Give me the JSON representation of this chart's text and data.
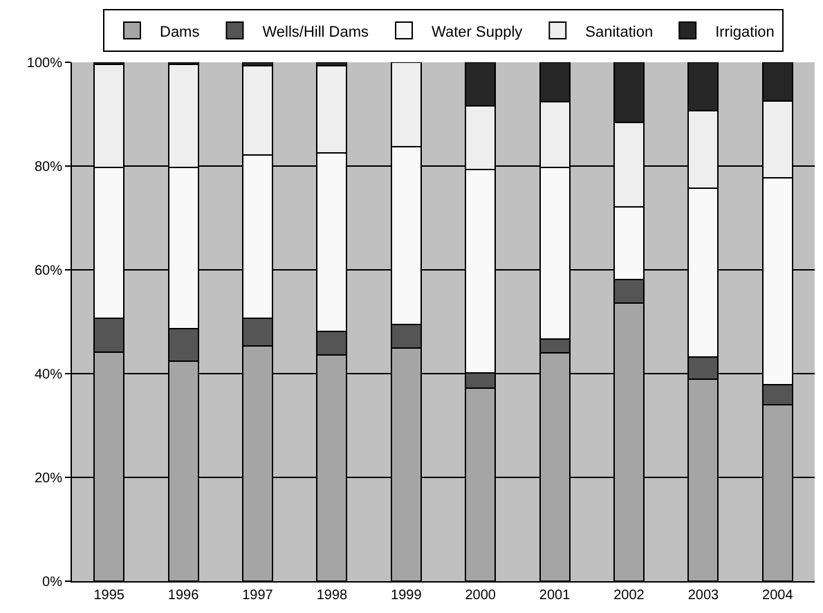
{
  "chart_data": {
    "type": "bar",
    "stacked": true,
    "categories": [
      "1995",
      "1996",
      "1997",
      "1998",
      "1999",
      "2000",
      "2001",
      "2002",
      "2003",
      "2004"
    ],
    "series": [
      {
        "name": "Dams",
        "color": "#a5a5a5",
        "values": [
          44.1,
          42.4,
          45.3,
          43.6,
          45.0,
          37.2,
          44.0,
          53.6,
          39.0,
          34.0
        ]
      },
      {
        "name": "Wells/Hill Dams",
        "color": "#555555",
        "values": [
          6.6,
          6.3,
          5.4,
          4.6,
          4.5,
          2.9,
          2.7,
          4.6,
          4.2,
          3.9
        ]
      },
      {
        "name": "Water Supply",
        "color": "#f9f9f9",
        "values": [
          29.0,
          31.0,
          31.4,
          34.4,
          34.2,
          39.2,
          33.0,
          14.0,
          32.5,
          39.9
        ]
      },
      {
        "name": "Sanitation",
        "color": "#eeeeee",
        "values": [
          19.9,
          19.9,
          17.2,
          16.8,
          16.3,
          12.3,
          12.7,
          16.2,
          15.0,
          14.7
        ]
      },
      {
        "name": "Irrigation",
        "color": "#262626",
        "values": [
          0.4,
          0.4,
          0.7,
          0.6,
          0,
          8.4,
          7.6,
          11.6,
          9.3,
          7.5
        ]
      }
    ],
    "ylim": [
      0,
      100
    ],
    "yticks": [
      {
        "value": 0,
        "label": "0%"
      },
      {
        "value": 20,
        "label": "20%"
      },
      {
        "value": 40,
        "label": "40%"
      },
      {
        "value": 60,
        "label": "60%"
      },
      {
        "value": 80,
        "label": "80%"
      },
      {
        "value": 100,
        "label": "100%"
      }
    ],
    "grid": "y",
    "legend": "top"
  }
}
